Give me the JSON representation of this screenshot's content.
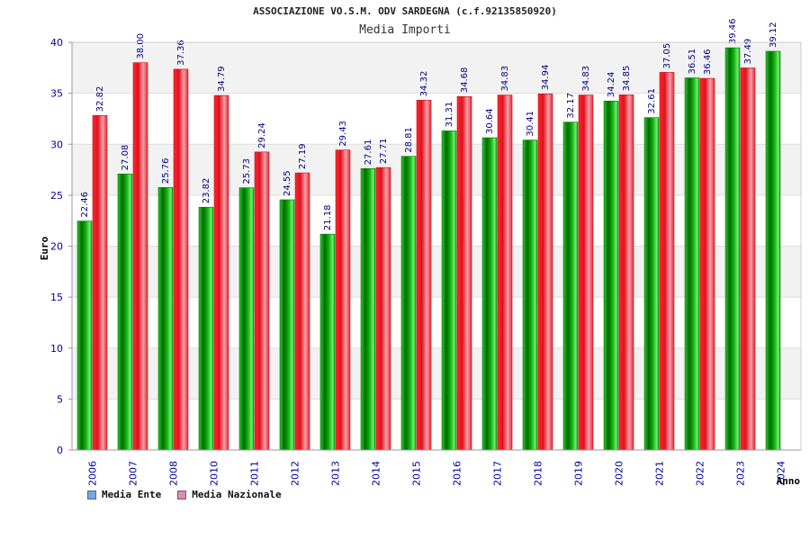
{
  "header": {
    "title": "ASSOCIAZIONE VO.S.M. ODV SARDEGNA (c.f.92135850920)",
    "subtitle": "Media Importi"
  },
  "colors": {
    "ente": "#00a000",
    "nazionale": "#e8202a",
    "legend_ente": "#6fa8e8",
    "legend_nazionale": "#e08ab0",
    "axis_text": "#0000a0",
    "label_text": "#000080"
  },
  "chart_data": {
    "type": "bar",
    "title": "Media Importi",
    "xlabel": "Anno",
    "ylabel": "Euro",
    "ylim": [
      0,
      40
    ],
    "yticks": [
      0,
      5,
      10,
      15,
      20,
      25,
      30,
      35,
      40
    ],
    "grid": true,
    "legend_position": "bottom-left",
    "categories": [
      "2006",
      "2007",
      "2008",
      "2010",
      "2011",
      "2012",
      "2013",
      "2014",
      "2015",
      "2016",
      "2017",
      "2018",
      "2019",
      "2020",
      "2021",
      "2022",
      "2023",
      "2024"
    ],
    "series": [
      {
        "name": "Media Ente",
        "values": [
          22.46,
          27.08,
          25.76,
          23.82,
          25.73,
          24.55,
          21.18,
          27.61,
          28.81,
          31.31,
          30.64,
          30.41,
          32.17,
          34.24,
          32.61,
          36.51,
          39.46,
          39.12
        ],
        "labels": [
          "22.46",
          "27.08",
          "25.76",
          "23.82",
          "25.73",
          "24.55",
          "21.18",
          "27.61",
          "28.81",
          "31.31",
          "30.64",
          "30.41",
          "32.17",
          "34.24",
          "32.61",
          "36.51",
          "39.46",
          "39.12"
        ]
      },
      {
        "name": "Media Nazionale",
        "values": [
          32.82,
          38.0,
          37.36,
          34.79,
          29.24,
          27.19,
          29.43,
          27.71,
          34.32,
          34.68,
          34.83,
          34.94,
          34.83,
          34.85,
          37.05,
          36.46,
          37.49,
          null
        ],
        "labels": [
          "32.82",
          "38.00",
          "37.36",
          "34.79",
          "29.24",
          "27.19",
          "29.43",
          "27.71",
          "34.32",
          "34.68",
          "34.83",
          "34.94",
          "34.83",
          "34.85",
          "37.05",
          "36.46",
          "37.49",
          null
        ]
      }
    ]
  },
  "legend": {
    "ente_label": "Media Ente",
    "nazionale_label": "Media Nazionale"
  }
}
